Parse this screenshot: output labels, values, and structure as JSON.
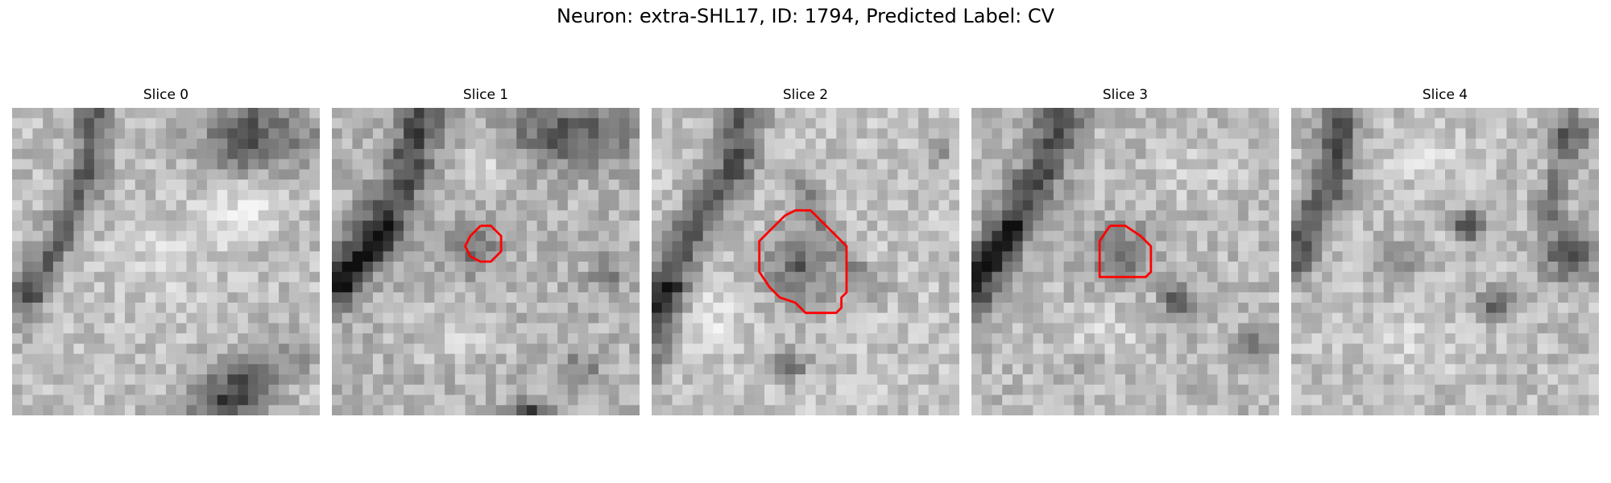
{
  "figure": {
    "title": "Neuron: extra-SHL17, ID: 1794, Predicted Label: CV",
    "outline_color": "#ff0000"
  },
  "panels": [
    {
      "title": "Slice 0",
      "contour": null
    },
    {
      "title": "Slice 1",
      "contour": "small"
    },
    {
      "title": "Slice 2",
      "contour": "large"
    },
    {
      "title": "Slice 3",
      "contour": "medium"
    },
    {
      "title": "Slice 4",
      "contour": null
    }
  ]
}
